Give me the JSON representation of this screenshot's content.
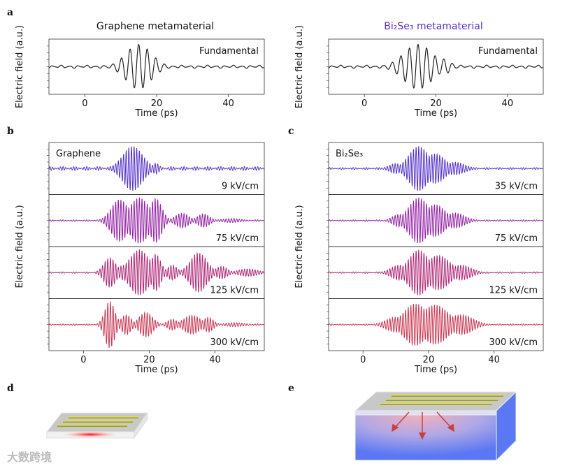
{
  "panel_labels": {
    "a": "a",
    "b": "b",
    "c": "c",
    "d": "d",
    "e": "e"
  },
  "titles": {
    "left": "Graphene metamaterial",
    "right": "Bi₂Se₃ metamaterial",
    "right_color": "#5b2fc6"
  },
  "watermark": "大数跨境",
  "chart_data": [
    {
      "id": "a-left",
      "type": "line",
      "xlabel": "Time (ps)",
      "ylabel": "Electric field (a.u.)",
      "xlim": [
        -10,
        50
      ],
      "xticks": [
        0,
        20,
        40
      ],
      "subplots": [
        {
          "label": "Fundamental",
          "color": "#222222",
          "carrier_period_ps": 2.4,
          "noise": 0.06,
          "envelope": [
            [
              15,
              3.5,
              0.85
            ]
          ]
        }
      ]
    },
    {
      "id": "a-right",
      "type": "line",
      "xlabel": "Time (ps)",
      "ylabel": "Electric field (a.u.)",
      "xlim": [
        -10,
        50
      ],
      "xticks": [
        0,
        20,
        40
      ],
      "subplots": [
        {
          "label": "Fundamental",
          "color": "#222222",
          "carrier_period_ps": 2.4,
          "noise": 0.06,
          "envelope": [
            [
              15,
              4,
              0.85
            ],
            [
              22,
              2,
              0.3
            ]
          ]
        }
      ]
    },
    {
      "id": "b",
      "type": "line",
      "xlabel": "Time (ps)",
      "ylabel": "Electric field (a.u.)",
      "xlim": [
        -10.5,
        55
      ],
      "xticks": [
        0,
        20,
        40
      ],
      "material": "Graphene",
      "subplots": [
        {
          "label": "9 kV/cm",
          "color": "#5534c8",
          "carrier_period_ps": 0.8,
          "noise": 0.08,
          "envelope": [
            [
              15,
              3,
              0.9
            ],
            [
              22,
              1,
              0.22
            ]
          ]
        },
        {
          "label": "75 kV/cm",
          "color": "#9424a6",
          "carrier_period_ps": 0.8,
          "noise": 0.03,
          "envelope": [
            [
              11,
              2.5,
              0.85
            ],
            [
              17,
              3,
              0.92
            ],
            [
              22,
              1.8,
              0.9
            ],
            [
              30,
              2,
              0.3
            ],
            [
              36.5,
              1.8,
              0.27
            ],
            [
              45,
              3,
              0.08
            ]
          ]
        },
        {
          "label": "125 kV/cm",
          "color": "#b02a78",
          "carrier_period_ps": 0.8,
          "noise": 0.03,
          "envelope": [
            [
              8,
              1.8,
              0.6
            ],
            [
              12,
              1.2,
              0.3
            ],
            [
              17,
              3,
              0.92
            ],
            [
              22,
              1.5,
              0.75
            ],
            [
              27,
              1.5,
              0.3
            ],
            [
              35,
              2.5,
              0.8
            ],
            [
              42,
              1.8,
              0.25
            ],
            [
              50,
              3,
              0.15
            ]
          ]
        },
        {
          "label": "300 kV/cm",
          "color": "#c83a55",
          "carrier_period_ps": 0.8,
          "noise": 0.03,
          "envelope": [
            [
              8,
              1.5,
              0.95
            ],
            [
              13,
              1.5,
              0.4
            ],
            [
              19,
              2,
              0.5
            ],
            [
              27,
              1.5,
              0.22
            ],
            [
              33,
              2.5,
              0.38
            ],
            [
              38,
              1.5,
              0.3
            ],
            [
              46,
              3,
              0.08
            ]
          ]
        }
      ]
    },
    {
      "id": "c",
      "type": "line",
      "xlabel": "Time (ps)",
      "ylabel": "Electric field (a.u.)",
      "xlim": [
        -10.5,
        55
      ],
      "xticks": [
        0,
        20,
        40
      ],
      "material": "Bi₂Se₃",
      "subplots": [
        {
          "label": "35 kV/cm",
          "color": "#5534c8",
          "carrier_period_ps": 0.8,
          "noise": 0.04,
          "envelope": [
            [
              17,
              3,
              0.9
            ],
            [
              22,
              3,
              0.6
            ],
            [
              28,
              3,
              0.25
            ],
            [
              10,
              2,
              0.2
            ]
          ]
        },
        {
          "label": "75 kV/cm",
          "color": "#9424a6",
          "carrier_period_ps": 0.8,
          "noise": 0.03,
          "envelope": [
            [
              17,
              3,
              0.92
            ],
            [
              22,
              3,
              0.65
            ],
            [
              28,
              3,
              0.3
            ],
            [
              11,
              2,
              0.25
            ]
          ]
        },
        {
          "label": "125 kV/cm",
          "color": "#b02a78",
          "carrier_period_ps": 0.8,
          "noise": 0.03,
          "envelope": [
            [
              17,
              3,
              0.92
            ],
            [
              23,
              3.5,
              0.7
            ],
            [
              30,
              3,
              0.3
            ],
            [
              11,
              2.5,
              0.3
            ]
          ]
        },
        {
          "label": "300 kV/cm",
          "color": "#c83a55",
          "carrier_period_ps": 0.8,
          "noise": 0.03,
          "envelope": [
            [
              16,
              3.5,
              0.85
            ],
            [
              22,
              4,
              0.8
            ],
            [
              30,
              3.5,
              0.4
            ],
            [
              10,
              3,
              0.3
            ]
          ]
        }
      ]
    }
  ]
}
